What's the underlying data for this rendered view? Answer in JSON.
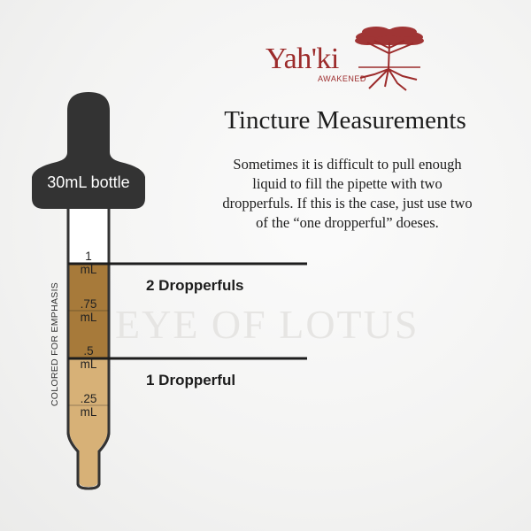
{
  "brand": {
    "name": "Yah'ki",
    "subtitle": "AWAKENED"
  },
  "title": "Tincture Measurements",
  "description": [
    "Sometimes it is difficult to pull enough",
    "liquid to fill the pipette with two",
    "dropperfuls. If this is the case, just use two",
    "of the “one dropperful” doeses."
  ],
  "watermark": "EYE OF LOTUS",
  "bottle": {
    "label": "30mL bottle",
    "side_label": "COLORED FOR EMPHASIS"
  },
  "ticks": [
    {
      "value": "1",
      "unit": "mL"
    },
    {
      "value": ".75",
      "unit": "mL"
    },
    {
      "value": ".5",
      "unit": "mL"
    },
    {
      "value": ".25",
      "unit": "mL"
    }
  ],
  "markers": {
    "two": "2 Dropperfuls",
    "one": "1 Dropperful"
  },
  "colors": {
    "bulb": "#333333",
    "dark_fill": "#a77a3a",
    "light_fill": "#d7b177",
    "brand": "#9c2b2b"
  }
}
